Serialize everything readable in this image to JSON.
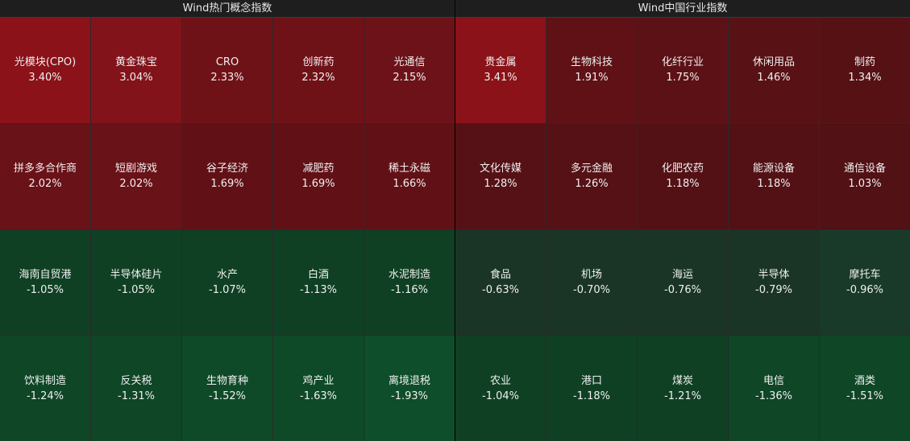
{
  "left": {
    "title": "Wind热门概念指数",
    "tiles": [
      {
        "name": "光模块(CPO)",
        "pct": "3.40%",
        "color": "#8a1218"
      },
      {
        "name": "黄金珠宝",
        "pct": "3.04%",
        "color": "#82131a"
      },
      {
        "name": "CRO",
        "pct": "2.33%",
        "color": "#6f1218"
      },
      {
        "name": "创新药",
        "pct": "2.32%",
        "color": "#6f1218"
      },
      {
        "name": "光通信",
        "pct": "2.15%",
        "color": "#6c1218"
      },
      {
        "name": "拼多多合作商",
        "pct": "2.02%",
        "color": "#691218"
      },
      {
        "name": "短剧游戏",
        "pct": "2.02%",
        "color": "#691218"
      },
      {
        "name": "谷子经济",
        "pct": "1.69%",
        "color": "#611116"
      },
      {
        "name": "减肥药",
        "pct": "1.69%",
        "color": "#611116"
      },
      {
        "name": "稀土永磁",
        "pct": "1.66%",
        "color": "#611116"
      },
      {
        "name": "海南自贸港",
        "pct": "-1.05%",
        "color": "#0f4024"
      },
      {
        "name": "半导体硅片",
        "pct": "-1.05%",
        "color": "#0f4024"
      },
      {
        "name": "水产",
        "pct": "-1.07%",
        "color": "#0f4024"
      },
      {
        "name": "白酒",
        "pct": "-1.13%",
        "color": "#0f4024"
      },
      {
        "name": "水泥制造",
        "pct": "-1.16%",
        "color": "#0f4024"
      },
      {
        "name": "饮料制造",
        "pct": "-1.24%",
        "color": "#0e4626"
      },
      {
        "name": "反关税",
        "pct": "-1.31%",
        "color": "#0e4626"
      },
      {
        "name": "生物育种",
        "pct": "-1.52%",
        "color": "#0e4a28"
      },
      {
        "name": "鸡产业",
        "pct": "-1.63%",
        "color": "#0e4a28"
      },
      {
        "name": "离境退税",
        "pct": "-1.93%",
        "color": "#0e4e2a"
      }
    ]
  },
  "right": {
    "title": "Wind中国行业指数",
    "tiles": [
      {
        "name": "贵金属",
        "pct": "3.41%",
        "color": "#8a1218"
      },
      {
        "name": "生物科技",
        "pct": "1.91%",
        "color": "#5f1116"
      },
      {
        "name": "化纤行业",
        "pct": "1.75%",
        "color": "#5c1116"
      },
      {
        "name": "休闲用品",
        "pct": "1.46%",
        "color": "#581115"
      },
      {
        "name": "制药",
        "pct": "1.34%",
        "color": "#561115"
      },
      {
        "name": "文化传媒",
        "pct": "1.28%",
        "color": "#551115"
      },
      {
        "name": "多元金融",
        "pct": "1.26%",
        "color": "#551115"
      },
      {
        "name": "化肥农药",
        "pct": "1.18%",
        "color": "#531115"
      },
      {
        "name": "能源设备",
        "pct": "1.18%",
        "color": "#531115"
      },
      {
        "name": "通信设备",
        "pct": "1.03%",
        "color": "#511115"
      },
      {
        "name": "食品",
        "pct": "-0.63%",
        "color": "#1a3526"
      },
      {
        "name": "机场",
        "pct": "-0.70%",
        "color": "#1a3526"
      },
      {
        "name": "海运",
        "pct": "-0.76%",
        "color": "#1a3526"
      },
      {
        "name": "半导体",
        "pct": "-0.79%",
        "color": "#1a3526"
      },
      {
        "name": "摩托车",
        "pct": "-0.96%",
        "color": "#193a28"
      },
      {
        "name": "农业",
        "pct": "-1.04%",
        "color": "#0f4024"
      },
      {
        "name": "港口",
        "pct": "-1.18%",
        "color": "#0f4024"
      },
      {
        "name": "煤炭",
        "pct": "-1.21%",
        "color": "#0f4024"
      },
      {
        "name": "电信",
        "pct": "-1.36%",
        "color": "#0e4626"
      },
      {
        "name": "酒类",
        "pct": "-1.51%",
        "color": "#0e4626"
      }
    ]
  }
}
